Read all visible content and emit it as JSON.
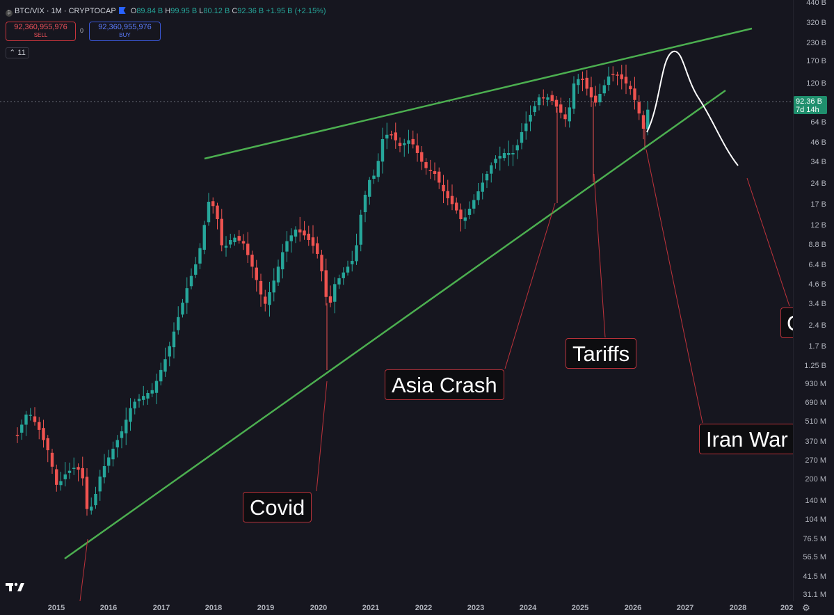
{
  "header": {
    "symbol": "BTC/VIX · 1M · CRYPTOCAP",
    "open_label": "O",
    "open": "89.84 B",
    "high_label": "H",
    "high": "99.95 B",
    "low_label": "L",
    "low": "80.12 B",
    "close_label": "C",
    "close": "92.36 B",
    "change": "+1.95 B (+2.15%)"
  },
  "trade": {
    "sell_price": "92,360,955,976",
    "sell_label": "SELL",
    "spread": "0",
    "buy_price": "92,360,955,976",
    "buy_label": "BUY"
  },
  "indicator_toggle": "11",
  "price_tag": {
    "price": "92.36 B",
    "countdown": "7d 14h"
  },
  "y_axis_labels": [
    "440 B",
    "320 B",
    "230 B",
    "170 B",
    "120 B",
    "64 B",
    "46 B",
    "34 B",
    "24 B",
    "17 B",
    "12 B",
    "8.8 B",
    "6.4 B",
    "4.6 B",
    "3.4 B",
    "2.4 B",
    "1.7 B",
    "1.25 B",
    "930 M",
    "690 M",
    "510 M",
    "370 M",
    "270 M",
    "200 M",
    "140 M",
    "104 M",
    "76.5 M",
    "56.5 M",
    "41.5 M",
    "31.1 M"
  ],
  "x_axis_labels": [
    "2015",
    "2016",
    "2017",
    "2018",
    "2019",
    "2020",
    "2021",
    "2022",
    "2023",
    "2024",
    "2025",
    "2026",
    "2027",
    "2028",
    "202"
  ],
  "annotations": [
    "Covid",
    "Asia Crash",
    "Tariffs",
    "Iran War",
    "C"
  ],
  "colors": {
    "background": "#16161f",
    "up_candle": "#26a69a",
    "down_candle": "#ef5350",
    "trendline": "#4caf50",
    "projection": "#ffffff",
    "callout_border": "#b8323a"
  },
  "chart_data": {
    "type": "candlestick",
    "scale": "log",
    "symbol": "BTC/VIX",
    "interval": "1M",
    "y_range": [
      "31.1 M",
      "440 B"
    ],
    "x_range": [
      "2015",
      "2028"
    ],
    "last_close": "92.36 B",
    "trendlines": [
      "rising upper resistance line from 2018 high through 2025 highs",
      "rising lower support line from 2015 low through 2020 Covid low"
    ],
    "projection": "hand-drawn white path rising to ~220 B then falling toward ~34 B",
    "events": [
      "Covid",
      "Asia Crash",
      "Tariffs",
      "Iran War"
    ]
  }
}
